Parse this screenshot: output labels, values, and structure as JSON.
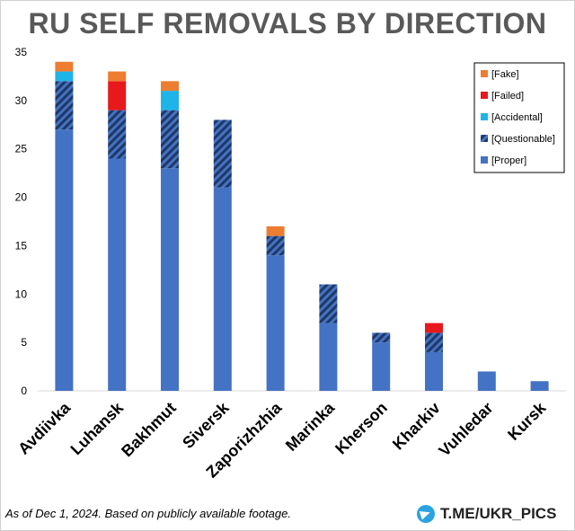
{
  "title": "RU SELF REMOVALS BY DIRECTION",
  "footer": {
    "note": "As of Dec 1, 2024. Based on publicly available footage.",
    "brand": "T.ME/UKR_PICS",
    "brand_icon": "telegram-icon"
  },
  "colors": {
    "Proper": "#4472c4",
    "Questionable": "#1f3864",
    "Accidental": "#1fb4e8",
    "Failed": "#e8191c",
    "Fake": "#ed7d31"
  },
  "chart_data": {
    "type": "bar",
    "stacked": true,
    "title": "RU SELF REMOVALS BY DIRECTION",
    "categories": [
      "Avdiivka",
      "Luhansk",
      "Bakhmut",
      "Siversk",
      "Zaporizhzhia",
      "Marinka",
      "Kherson",
      "Kharkiv",
      "Vuhledar",
      "Kursk"
    ],
    "series": [
      {
        "name": "[Proper]",
        "key": "Proper",
        "values": [
          27,
          24,
          23,
          21,
          14,
          7,
          5,
          4,
          2,
          1
        ]
      },
      {
        "name": "[Questionable]",
        "key": "Questionable",
        "values": [
          5,
          5,
          6,
          7,
          2,
          4,
          1,
          2,
          0,
          0
        ]
      },
      {
        "name": "[Accidental]",
        "key": "Accidental",
        "values": [
          1,
          0,
          2,
          0,
          0,
          0,
          0,
          0,
          0,
          0
        ]
      },
      {
        "name": "[Failed]",
        "key": "Failed",
        "values": [
          0,
          3,
          0,
          0,
          0,
          0,
          0,
          1,
          0,
          0
        ]
      },
      {
        "name": "[Fake]",
        "key": "Fake",
        "values": [
          1,
          1,
          1,
          0,
          1,
          0,
          0,
          0,
          0,
          0
        ]
      }
    ],
    "legend_order": [
      "[Fake]",
      "[Failed]",
      "[Accidental]",
      "[Questionable]",
      "[Proper]"
    ],
    "legend_position": "top-right",
    "ylim": [
      0,
      35
    ],
    "yticks": [
      0,
      5,
      10,
      15,
      20,
      25,
      30,
      35
    ],
    "grid": false,
    "xlabel": "",
    "ylabel": ""
  }
}
